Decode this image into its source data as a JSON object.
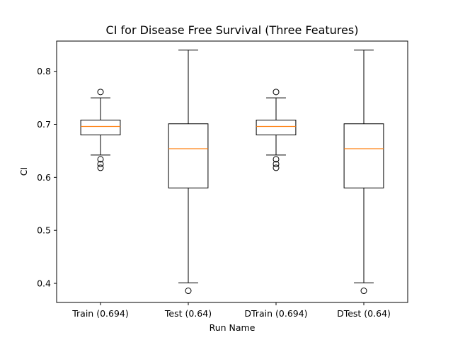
{
  "chart_data": {
    "type": "box",
    "title": "CI for Disease Free Survival (Three Features)",
    "xlabel": "Run Name",
    "ylabel": "CI",
    "ylim": [
      0.364,
      0.857
    ],
    "yticks": [
      0.4,
      0.5,
      0.6,
      0.7,
      0.8
    ],
    "ytick_labels": [
      "0.4",
      "0.5",
      "0.6",
      "0.7",
      "0.8"
    ],
    "grid": false,
    "categories": [
      "Train (0.694)",
      "Test (0.64)",
      "DTrain (0.694)",
      "DTest (0.64)"
    ],
    "boxes": [
      {
        "whisker_low": 0.642,
        "q1": 0.68,
        "median": 0.696,
        "q3": 0.708,
        "whisker_high": 0.75,
        "outliers": [
          0.618,
          0.625,
          0.634,
          0.761
        ]
      },
      {
        "whisker_low": 0.401,
        "q1": 0.58,
        "median": 0.654,
        "q3": 0.701,
        "whisker_high": 0.84,
        "outliers": [
          0.386
        ]
      },
      {
        "whisker_low": 0.642,
        "q1": 0.68,
        "median": 0.696,
        "q3": 0.708,
        "whisker_high": 0.75,
        "outliers": [
          0.618,
          0.625,
          0.634,
          0.761
        ]
      },
      {
        "whisker_low": 0.401,
        "q1": 0.58,
        "median": 0.654,
        "q3": 0.701,
        "whisker_high": 0.84,
        "outliers": [
          0.386
        ]
      }
    ],
    "colors": {
      "box": "#000000",
      "median": "#ff7f0e",
      "axes": "#000000"
    }
  }
}
